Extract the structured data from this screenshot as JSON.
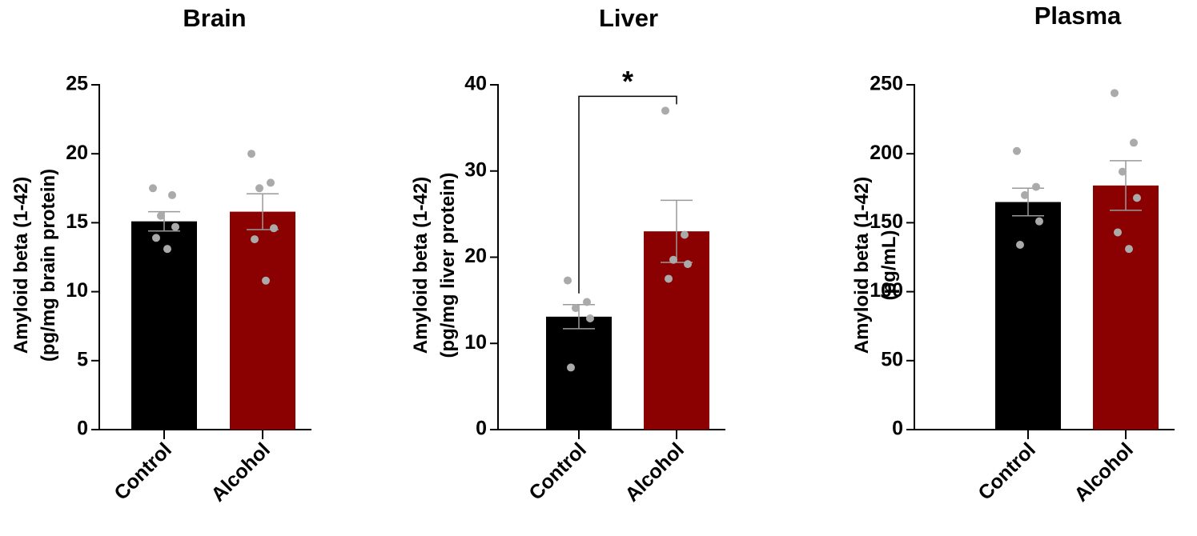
{
  "chart_data": [
    {
      "type": "bar",
      "title": "Brain",
      "ylabel": [
        "Amyloid beta (1-42)",
        "(pg/mg brain protein)"
      ],
      "categories": [
        "Control",
        "Alcohol"
      ],
      "values": [
        15.1,
        15.8
      ],
      "errors": [
        0.7,
        1.3
      ],
      "points": [
        [
          17.5,
          17.0,
          15.5,
          14.7,
          13.9,
          13.1
        ],
        [
          20.0,
          17.9,
          17.5,
          14.6,
          13.8,
          10.8
        ]
      ],
      "colors": [
        "#000000",
        "#8b0000"
      ],
      "point_color": "#aaaaaa",
      "ylim": [
        0,
        25
      ],
      "yticks": [
        0,
        5,
        10,
        15,
        20,
        25
      ]
    },
    {
      "type": "bar",
      "title": "Liver",
      "ylabel": [
        "Amyloid beta (1-42)",
        "(pg/mg liver protein)"
      ],
      "categories": [
        "Control",
        "Alcohol"
      ],
      "values": [
        13.1,
        23.0
      ],
      "errors": [
        1.4,
        3.6
      ],
      "points": [
        [
          17.3,
          14.8,
          14.1,
          12.9,
          7.2
        ],
        [
          37.0,
          22.6,
          19.7,
          19.2,
          17.5
        ]
      ],
      "colors": [
        "#000000",
        "#8b0000"
      ],
      "point_color": "#aaaaaa",
      "ylim": [
        0,
        40
      ],
      "yticks": [
        0,
        10,
        20,
        30,
        40
      ],
      "significance": "*"
    },
    {
      "type": "bar",
      "title": "Plasma",
      "ylabel": [
        "Amyloid beta (1-42)",
        "(pg/mL)"
      ],
      "categories": [
        "Control",
        "Alcohol"
      ],
      "values": [
        165,
        177
      ],
      "errors": [
        10,
        18
      ],
      "points": [
        [
          202,
          176,
          170,
          151,
          134
        ],
        [
          244,
          208,
          187,
          168,
          143,
          131
        ]
      ],
      "colors": [
        "#000000",
        "#8b0000"
      ],
      "point_color": "#aaaaaa",
      "ylim": [
        0,
        250
      ],
      "yticks": [
        0,
        50,
        100,
        150,
        200,
        250
      ]
    }
  ]
}
